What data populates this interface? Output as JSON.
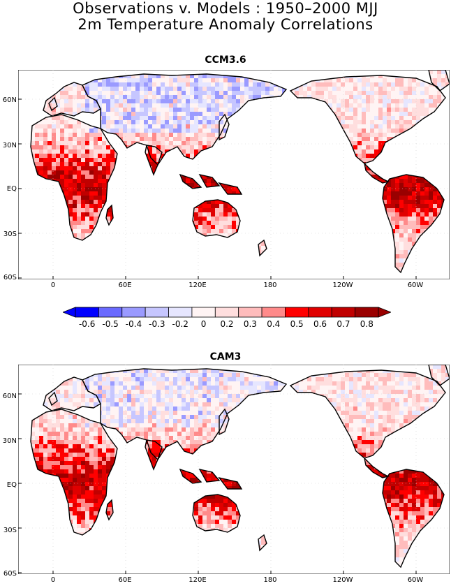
{
  "title_line1": "Observations v. Models : 1950–2000 MJJ",
  "title_line2": "2m Temperature Anomaly Correlations",
  "panels": [
    {
      "title": "CCM3.6"
    },
    {
      "title": "CAM3"
    }
  ],
  "lat_labels": [
    "60N",
    "30N",
    "EQ",
    "30S",
    "60S"
  ],
  "lon_labels": [
    "0",
    "60E",
    "120E",
    "180",
    "120W",
    "60W"
  ],
  "colorbar": {
    "labels": [
      "-0.6",
      "-0.5",
      "-0.4",
      "-0.3",
      "-0.2",
      "0",
      "0.2",
      "0.3",
      "0.4",
      "0.5",
      "0.6",
      "0.7",
      "0.8"
    ],
    "colors": [
      "#0000ff",
      "#6a6aff",
      "#9a9aff",
      "#c6c6ff",
      "#e6e6ff",
      "#fff4f4",
      "#ffdede",
      "#ffbcbc",
      "#ff8a8a",
      "#ff0000",
      "#e00000",
      "#c00000",
      "#9a0000"
    ]
  }
}
